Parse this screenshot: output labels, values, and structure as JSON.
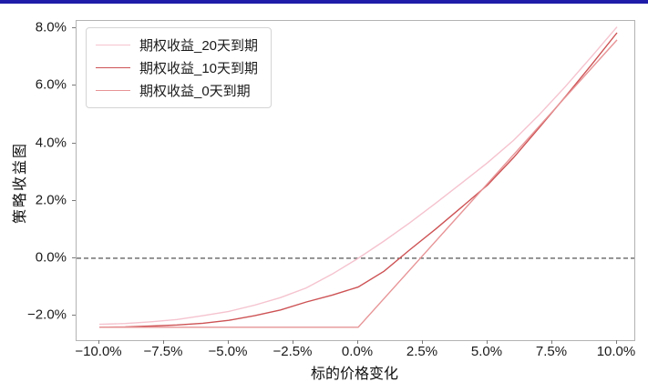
{
  "window": {
    "accent_color": "#1e1ca8"
  },
  "chart_data": {
    "type": "line",
    "title": "",
    "xlabel": "标的价格变化",
    "ylabel": "策略收益图",
    "xlim": [
      -10.88,
      10.67
    ],
    "ylim": [
      -2.85,
      8.26
    ],
    "grid": false,
    "legend_position": "upper-left",
    "x_ticks": [
      -10,
      -7.5,
      -5,
      -2.5,
      0,
      2.5,
      5,
      7.5,
      10
    ],
    "x_tick_labels": [
      "−10.0%",
      "−7.5%",
      "−5.0%",
      "−2.5%",
      "0.0%",
      "2.5%",
      "5.0%",
      "7.5%",
      "10.0%"
    ],
    "y_ticks": [
      -2,
      0,
      2,
      4,
      6,
      8
    ],
    "y_tick_labels": [
      "−2.0%",
      "0.0%",
      "2.0%",
      "4.0%",
      "6.0%",
      "8.0%"
    ],
    "zero_line": {
      "y": 0,
      "style": "dashed",
      "color": "#404040"
    },
    "series": [
      {
        "name": "期权收益_20天到期",
        "color": "#f5c3cf",
        "x": [
          -10,
          -9,
          -8,
          -7,
          -6,
          -5,
          -4,
          -3,
          -2,
          -1,
          0,
          1,
          2,
          3,
          4,
          5,
          6,
          7,
          8,
          9,
          10
        ],
        "y": [
          -2.3,
          -2.27,
          -2.21,
          -2.13,
          -2.0,
          -1.85,
          -1.63,
          -1.37,
          -1.03,
          -0.55,
          0.0,
          0.6,
          1.24,
          1.92,
          2.62,
          3.33,
          4.1,
          5.0,
          5.97,
          7.0,
          8.05
        ]
      },
      {
        "name": "期权收益_10天到期",
        "color": "#cd5254",
        "x": [
          -10,
          -9,
          -8,
          -7,
          -6,
          -5,
          -4,
          -3,
          -2,
          -1,
          0,
          1,
          2,
          3,
          4,
          5,
          6,
          7,
          8,
          9,
          10
        ],
        "y": [
          -2.4,
          -2.39,
          -2.36,
          -2.32,
          -2.26,
          -2.16,
          -2.0,
          -1.8,
          -1.52,
          -1.28,
          -1.0,
          -0.45,
          0.3,
          1.02,
          1.78,
          2.55,
          3.5,
          4.55,
          5.62,
          6.72,
          7.85
        ]
      },
      {
        "name": "期权收益_0天到期",
        "color": "#e79496",
        "x": [
          -10,
          -7.5,
          -5,
          -2.5,
          0,
          2.5,
          5,
          7.5,
          10
        ],
        "y": [
          -2.4,
          -2.4,
          -2.4,
          -2.4,
          -2.4,
          0.1,
          2.6,
          5.1,
          7.6
        ]
      }
    ]
  }
}
